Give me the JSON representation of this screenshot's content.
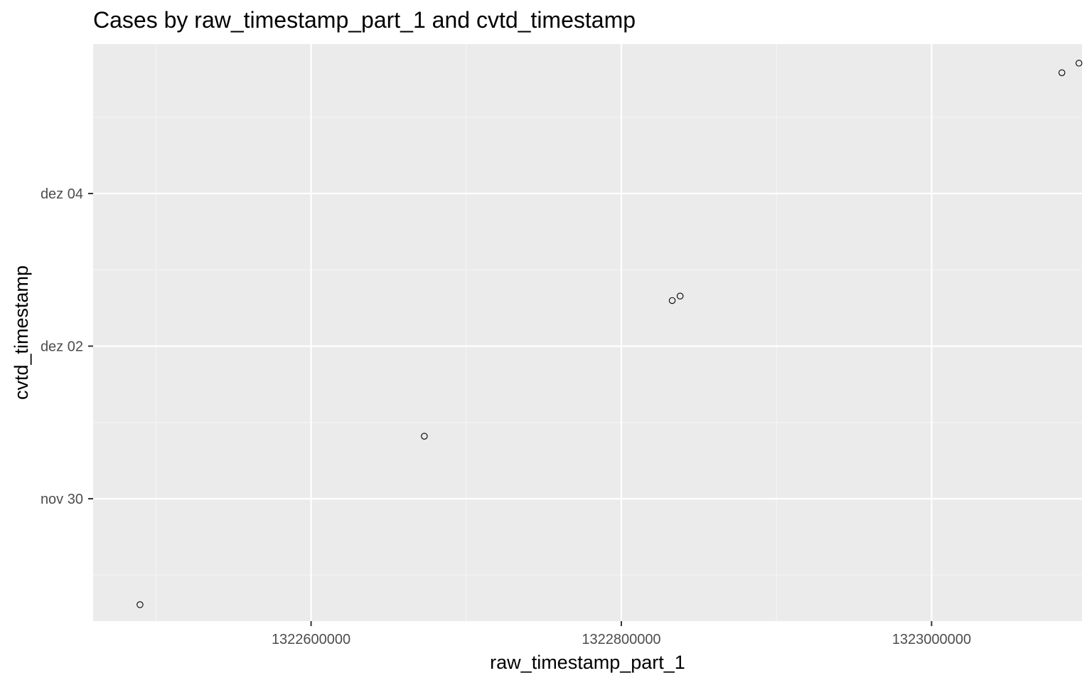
{
  "chart_data": {
    "type": "scatter",
    "title": "Cases by raw_timestamp_part_1 and cvtd_timestamp",
    "xlabel": "raw_timestamp_part_1",
    "ylabel": "cvtd_timestamp",
    "x_ticks": [
      {
        "value": 1322600000,
        "label": "1322600000"
      },
      {
        "value": 1322800000,
        "label": "1322800000"
      },
      {
        "value": 1323000000,
        "label": "1323000000"
      }
    ],
    "y_ticks": [
      {
        "value": "2011-11-30T00:00",
        "label": "nov 30"
      },
      {
        "value": "2011-12-02T00:00",
        "label": "dez 02"
      },
      {
        "value": "2011-12-04T00:00",
        "label": "dez 04"
      }
    ],
    "xlim": [
      1322459500,
      1323097000
    ],
    "ylim": [
      "2011-11-28T09:30",
      "2011-12-05T23:00"
    ],
    "grid": true,
    "points": [
      {
        "x": 1322489700,
        "y": "2011-11-28T14:40"
      },
      {
        "x": 1322673000,
        "y": "2011-11-30T19:40"
      },
      {
        "x": 1322832800,
        "y": "2011-12-02T14:20"
      },
      {
        "x": 1322837900,
        "y": "2011-12-02T15:45"
      },
      {
        "x": 1323084000,
        "y": "2011-12-05T14:00"
      },
      {
        "x": 1323095000,
        "y": "2011-12-05T17:00"
      }
    ]
  },
  "colors": {
    "panel_background": "#ebebeb",
    "grid_major": "#ffffff",
    "grid_minor": "#f5f5f5",
    "point_stroke": "#000000",
    "tick_text": "#4d4d4d"
  }
}
